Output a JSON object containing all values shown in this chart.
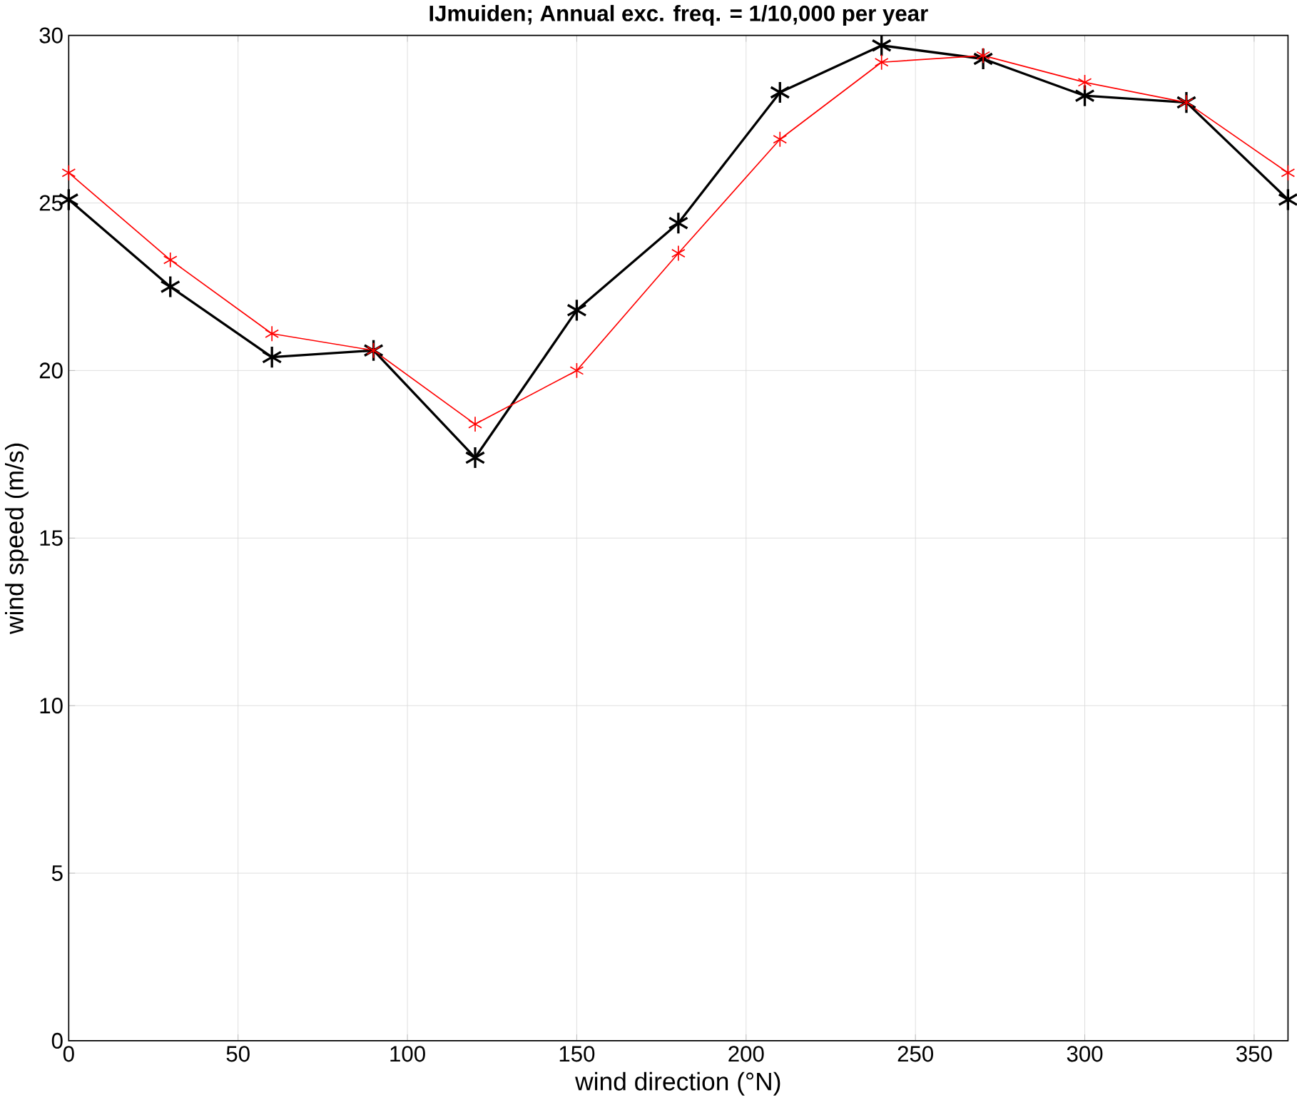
{
  "chart_data": {
    "type": "line",
    "title": "IJmuiden; Annual exc. freq. = 1/10,000 per year",
    "xlabel": "wind direction  (°N)",
    "ylabel": "wind speed (m/s)",
    "x": [
      0,
      30,
      60,
      90,
      120,
      150,
      180,
      210,
      240,
      270,
      300,
      330,
      360
    ],
    "series": [
      {
        "color": "#000000",
        "values": [
          25.1,
          22.5,
          20.4,
          20.6,
          17.4,
          21.8,
          24.4,
          28.3,
          29.7,
          29.3,
          28.2,
          28.0,
          25.1
        ]
      },
      {
        "color": "#ff0000",
        "values": [
          25.9,
          23.3,
          21.1,
          20.6,
          18.4,
          20.0,
          23.5,
          26.9,
          29.2,
          29.4,
          28.6,
          28.0,
          25.9
        ]
      }
    ],
    "xlim": [
      0,
      360
    ],
    "ylim": [
      0,
      30
    ],
    "xticks": [
      0,
      50,
      100,
      150,
      200,
      250,
      300,
      350
    ],
    "yticks": [
      0,
      5,
      10,
      15,
      20,
      25,
      30
    ],
    "grid": true,
    "marker": "cross",
    "line_style": "solid"
  }
}
